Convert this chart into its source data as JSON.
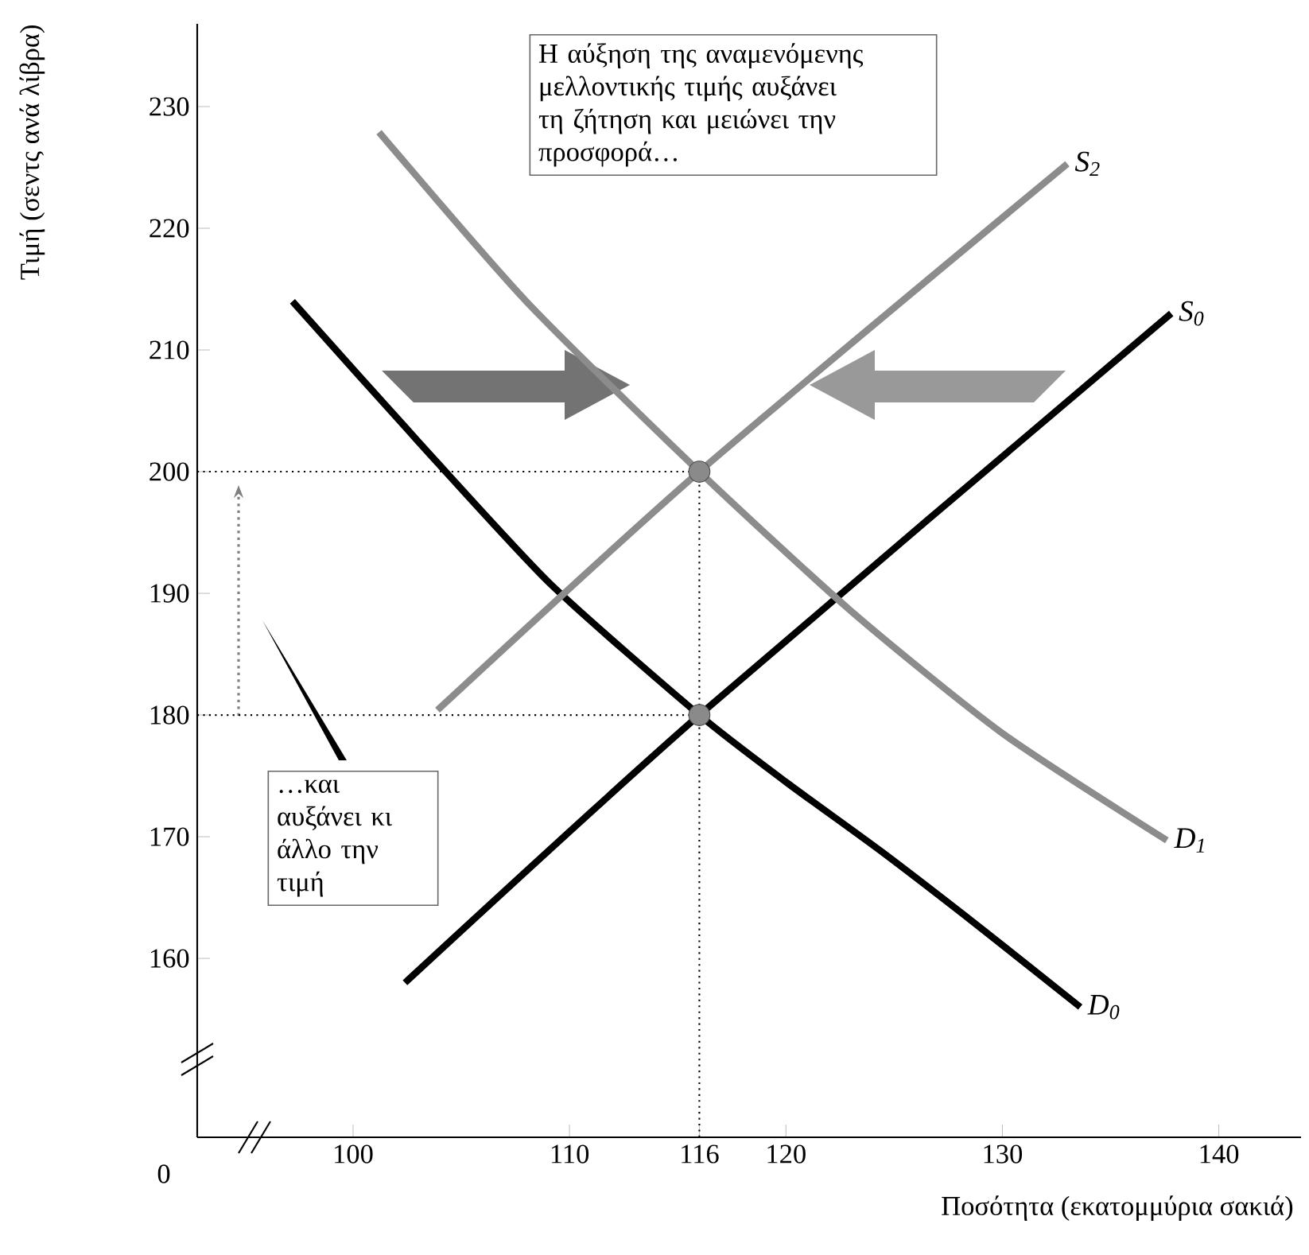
{
  "chart_data": {
    "type": "line",
    "xlabel": "Ποσότητα (εκατομμύρια σακιά)",
    "ylabel": "Τιμή (σεντς ανά λίβρα)",
    "xlim": [
      92.8,
      143.8
    ],
    "ylim": [
      145.3,
      236.8
    ],
    "xticks": [
      100,
      110,
      116,
      120,
      130,
      140
    ],
    "yticks": [
      160,
      170,
      180,
      190,
      200,
      210,
      220,
      230
    ],
    "grid": false,
    "legend": false,
    "marker": "none",
    "line_style": "solid",
    "series": [
      {
        "name": "S$_{0}$",
        "type": "line",
        "color": "#000000",
        "x": [
          102.4,
          116,
          137.8
        ],
        "values": [
          158,
          180,
          213
        ]
      },
      {
        "name": "D$_{0}$",
        "type": "line",
        "color": "#000000",
        "x": [
          97.2,
          103,
          109.1,
          116,
          120,
          124.4,
          129,
          133.6
        ],
        "values": [
          214,
          202.5,
          190.8,
          180,
          174.5,
          168.8,
          162.5,
          156
        ]
      },
      {
        "name": "S$_{2}$",
        "type": "line",
        "color": "#8c8c8c",
        "x": [
          103.9,
          116,
          133
        ],
        "values": [
          180.4,
          200,
          225.3
        ]
      },
      {
        "name": "D$_{1}$",
        "type": "line",
        "color": "#8c8c8c",
        "x": [
          101.2,
          108,
          116,
          123.1,
          130,
          137.6
        ],
        "values": [
          227.9,
          214,
          200,
          188.4,
          178.5,
          169.7
        ]
      },
      {
        "type": "scatter",
        "color": "#8a8a8a",
        "marker": "circle",
        "x": [
          116,
          116
        ],
        "values": [
          200,
          180
        ]
      }
    ],
    "ref_lines": [
      {
        "axis": "y",
        "value": 200,
        "color": "#000000",
        "line_style": "dotted"
      },
      {
        "axis": "y",
        "value": 180,
        "color": "#000000",
        "line_style": "dotted"
      },
      {
        "axis": "x",
        "value": 116,
        "color": "#000000",
        "line_style": "dotted"
      }
    ],
    "annotations": [
      "Η αύξηση της αναμενόμενης μελλοντικής τιμής αυξάνει τη ζήτηση και μειώνει την προσφορά…",
      "…και αυξάνει κι άλλο την τιμή",
      "0"
    ]
  }
}
